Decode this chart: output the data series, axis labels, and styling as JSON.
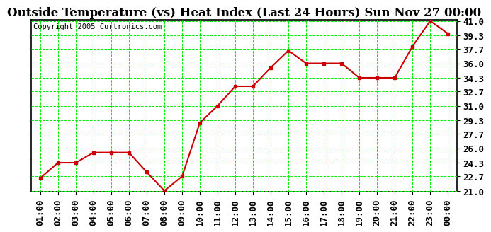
{
  "title": "Outside Temperature (vs) Heat Index (Last 24 Hours) Sun Nov 27 00:00",
  "copyright": "Copyright 2005 Curtronics.com",
  "x_labels": [
    "01:00",
    "02:00",
    "03:00",
    "04:00",
    "05:00",
    "06:00",
    "07:00",
    "08:00",
    "09:00",
    "10:00",
    "11:00",
    "12:00",
    "13:00",
    "14:00",
    "15:00",
    "16:00",
    "17:00",
    "18:00",
    "19:00",
    "20:00",
    "21:00",
    "22:00",
    "23:00",
    "00:00"
  ],
  "y_values": [
    22.5,
    24.3,
    24.3,
    25.5,
    25.5,
    25.5,
    23.2,
    21.0,
    22.7,
    29.0,
    31.0,
    33.3,
    33.3,
    35.5,
    37.5,
    36.0,
    36.0,
    36.0,
    34.3,
    34.3,
    34.3,
    38.0,
    41.0,
    39.5
  ],
  "ylim_min": 21.0,
  "ylim_max": 41.0,
  "ytick_values": [
    21.0,
    22.7,
    24.3,
    26.0,
    27.7,
    29.3,
    31.0,
    32.7,
    34.3,
    36.0,
    37.7,
    39.3,
    41.0
  ],
  "ytick_labels": [
    "21.0",
    "22.7",
    "24.3",
    "26.0",
    "27.7",
    "29.3",
    "31.0",
    "32.7",
    "34.3",
    "36.0",
    "37.7",
    "39.3",
    "41.0"
  ],
  "line_color": "#cc0000",
  "marker_color": "#cc0000",
  "grid_color": "#00ee00",
  "bg_color": "#ffffff",
  "plot_bg_color": "#ffffff",
  "title_fontsize": 12,
  "copyright_fontsize": 7.5,
  "tick_fontsize": 9
}
